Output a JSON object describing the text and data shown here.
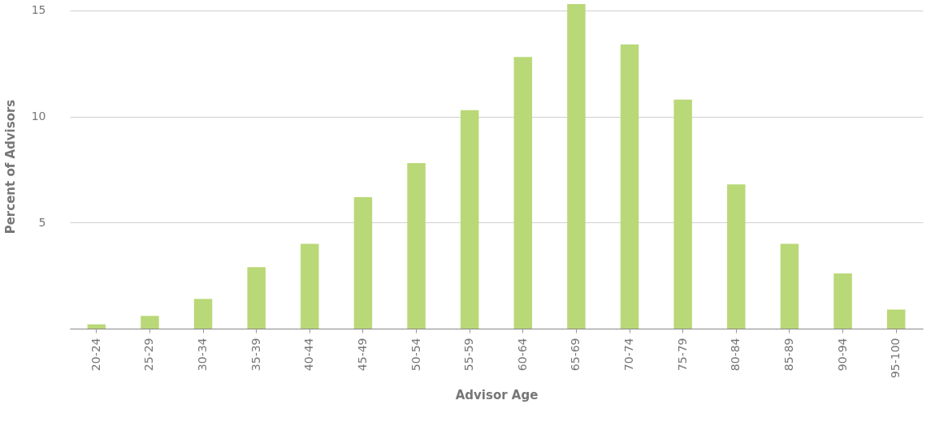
{
  "chart_data": {
    "type": "bar",
    "xlabel": "Advisor Age",
    "ylabel": "Percent of Advisors",
    "categories": [
      "20-24",
      "25-29",
      "30-34",
      "35-39",
      "40-44",
      "45-49",
      "50-54",
      "55-59",
      "60-64",
      "65-69",
      "70-74",
      "75-79",
      "80-84",
      "85-89",
      "90-94",
      "95-100"
    ],
    "values": [
      0.2,
      0.6,
      1.4,
      2.9,
      4.0,
      6.2,
      7.8,
      10.3,
      12.8,
      15.3,
      13.4,
      10.8,
      6.8,
      4.0,
      2.6,
      0.9
    ],
    "color": "#b9d877",
    "ylim": [
      0,
      15.3
    ],
    "yticks": [
      {
        "value": 0,
        "label": null
      },
      5,
      10,
      15
    ],
    "grid": "y"
  }
}
